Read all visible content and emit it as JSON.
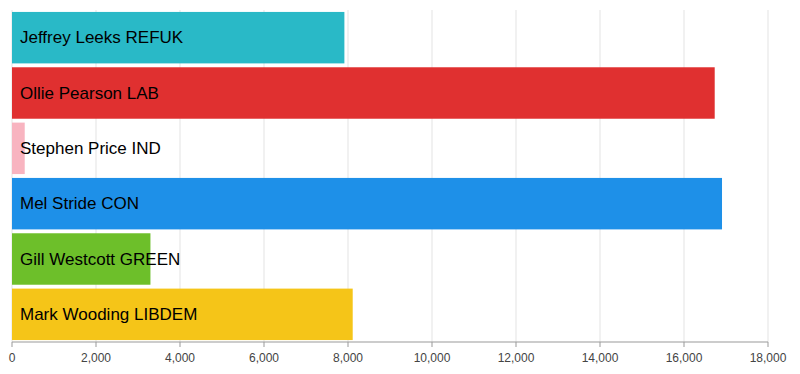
{
  "chart_data": {
    "type": "bar",
    "orientation": "horizontal",
    "categories": [
      "Jeffrey Leeks REFUK",
      "Ollie Pearson LAB",
      "Stephen Price IND",
      "Mel Stride CON",
      "Gill Westcott GREEN",
      "Mark Wooding LIBDEM"
    ],
    "values": [
      7914,
      16731,
      303,
      16905,
      3296,
      8112
    ],
    "colors": [
      "#29B9C7",
      "#E03030",
      "#F8B4C0",
      "#1E90E8",
      "#6DBF2A",
      "#F5C518"
    ],
    "xlim": [
      0,
      18000
    ],
    "xticks": [
      0,
      {
        "value": 2000,
        "label": "2,000"
      },
      {
        "value": 4000,
        "label": "4,000"
      },
      {
        "value": 6000,
        "label": "6,000"
      },
      {
        "value": 8000,
        "label": "8,000"
      },
      {
        "value": 10000,
        "label": "10,000"
      },
      {
        "value": 12000,
        "label": "12,000"
      },
      {
        "value": 14000,
        "label": "14,000"
      },
      {
        "value": 16000,
        "label": "16,000"
      },
      {
        "value": 18000,
        "label": "18,000"
      }
    ],
    "grid": true
  }
}
